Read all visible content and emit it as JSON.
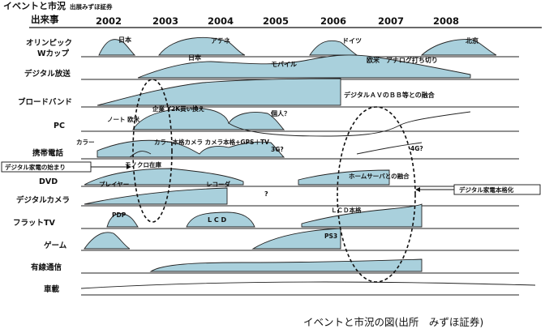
{
  "header": {
    "title": "イベントと市況",
    "subtitle": "出展みずほ証券",
    "column_label": "出来事",
    "years": [
      "2002",
      "2003",
      "2004",
      "2005",
      "2006",
      "2007",
      "2008"
    ]
  },
  "rows": [
    "オリンピック",
    "Wカップ",
    "デジタル放送",
    "ブロードバンド",
    "PC",
    "携帯電話",
    "DVD",
    "デジタルカメラ",
    "フラットTV",
    "ゲーム",
    "有線通信",
    "車載"
  ],
  "annotations": {
    "olympic_2002": "日本",
    "olympic_2004": "アテネ",
    "olympic_2006": "ドイツ",
    "olympic_2008": "北京",
    "digital_japan": "日本",
    "digital_mobile": "モバイル",
    "digital_analog": "欧米　アナログ打ち切り",
    "broadband": "デジタルＡＶのＢＢ等との融合",
    "pc_y2k": "企業 Y2K買い換え",
    "pc_note": "ノート  欧米",
    "pc_personal": "個人？",
    "phone_color": "カラー",
    "phone_camera": "カラー本格カメラ カメラ本格+GPS＋TV",
    "phone_3g": "3G?",
    "phone_4g": "4G?",
    "phone_mono": "モノクロ在庫",
    "dvd_player": "プレイヤー",
    "dvd_recorder": "レコーダ",
    "dvd_home": "ホームサーバとの融合",
    "camera_q": "?",
    "tv_pdp": "PDP",
    "tv_lcd": "L C D",
    "tv_lcd_full": "ＬＣＤ本格",
    "game_ps3": "PS3"
  },
  "callouts": {
    "left": "デジタル家電の始まり",
    "right": "デジタル家電本格化"
  },
  "caption": "イベントと市況の図(出所　みずほ証券)"
}
